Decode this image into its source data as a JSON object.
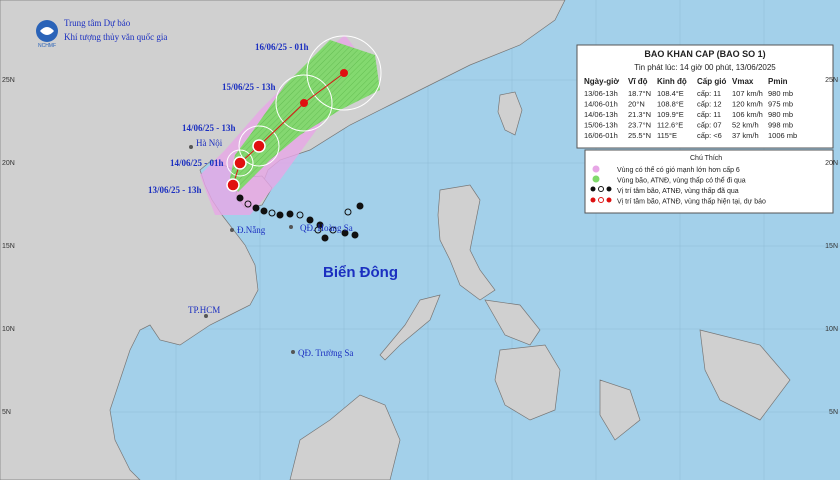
{
  "header": {
    "org": "Trung tâm Dự báo",
    "agency": "Khí tượng thủy văn quốc gia",
    "logo": "NCHMF"
  },
  "bulletin": {
    "title": "BAO KHAN CAP (BAO SO 1)",
    "issued": "Tin phát lúc: 14 giờ 00 phút, 13/06/2025",
    "columns": [
      "Ngày-giờ",
      "Vĩ độ",
      "Kinh độ",
      "Cấp gió",
      "Vmax",
      "Pmin"
    ],
    "rows": [
      [
        "13/06-13h",
        "18.7°N",
        "108.4°E",
        "cấp: 11",
        "107 km/h",
        "980 mb"
      ],
      [
        "14/06-01h",
        "20°N",
        "108.8°E",
        "cấp: 12",
        "120 km/h",
        "975 mb"
      ],
      [
        "14/06-13h",
        "21.3°N",
        "109.9°E",
        "cấp: 11",
        "106 km/h",
        "980 mb"
      ],
      [
        "15/06-13h",
        "23.7°N",
        "112.6°E",
        "cấp: 07",
        "52 km/h",
        "998 mb"
      ],
      [
        "16/06-01h",
        "25.5°N",
        "115°E",
        "cấp: <6",
        "37 km/h",
        "1006 mb"
      ]
    ]
  },
  "legend": {
    "title": "Chú Thích",
    "items": [
      "Vùng có thể có gió mạnh lớn hơn cấp 6",
      "Vùng bão, ATNĐ, vùng thấp có thể đi qua",
      "Vị trí tâm bão, ATNĐ, vùng thấp đã qua",
      "Vị trí tâm bão, ATNĐ, vùng thấp hiện tại, dự báo"
    ]
  },
  "map": {
    "forecast_labels": [
      "16/06/25 - 01h",
      "15/06/25 - 13h",
      "14/06/25 - 13h",
      "14/06/25 - 01h",
      "13/06/25 - 13h"
    ],
    "places": [
      "Hà Nội",
      "Đ.Nẵng",
      "QĐ. Hoàng Sa",
      "TP.HCM",
      "QĐ. Trường Sa"
    ],
    "sea": "Biển Đông",
    "lat_labels": [
      "25N",
      "20N",
      "15N",
      "10N",
      "5N"
    ]
  }
}
